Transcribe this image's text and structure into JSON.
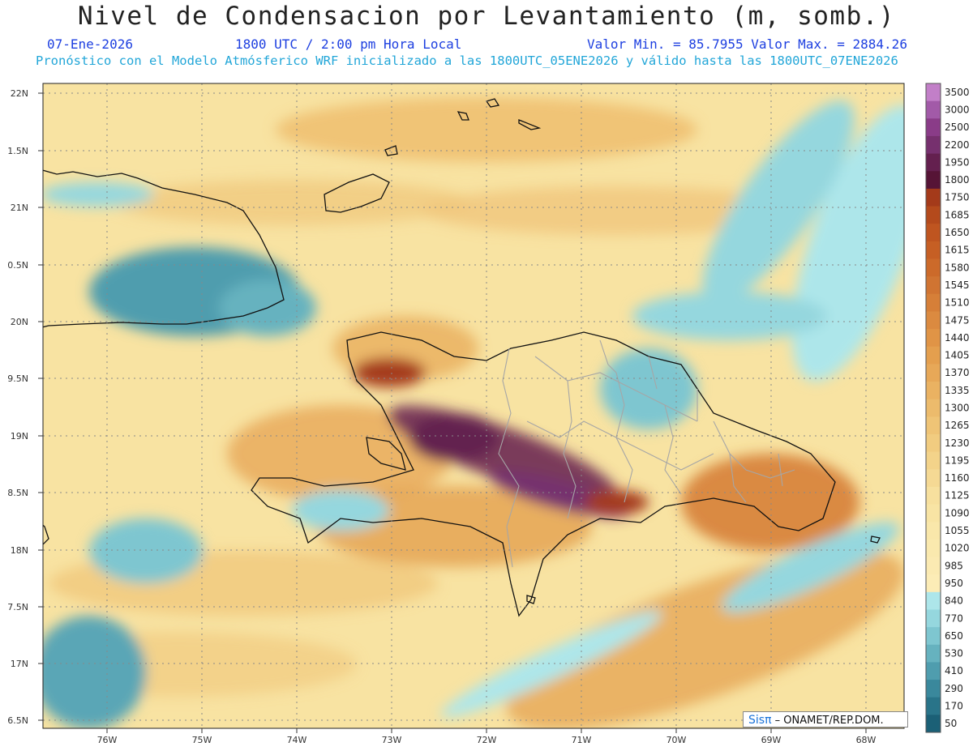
{
  "header": {
    "title": "Nivel de Condensacion por Levantamiento (m, somb.)",
    "date": "07-Ene-2026",
    "time": "1800 UTC / 2:00 pm Hora Local",
    "stats": "Valor Min. = 85.7955   Valor Max. = 2884.26",
    "forecast": "Pronóstico con el Modelo Atmósferico WRF inicializado a las 1800UTC_05ENE2026 y válido hasta las  1800UTC_07ENE2026"
  },
  "axes": {
    "lat_labels": [
      "22N",
      "1.5N",
      "21N",
      "0.5N",
      "20N",
      "9.5N",
      "19N",
      "8.5N",
      "18N",
      "7.5N",
      "17N",
      "6.5N"
    ],
    "lon_labels": [
      "76W",
      "75W",
      "74W",
      "73W",
      "72W",
      "71W",
      "70W",
      "69W",
      "68W"
    ]
  },
  "colorbar": {
    "levels": [
      "3500",
      "3000",
      "2500",
      "2200",
      "1950",
      "1800",
      "1750",
      "1685",
      "1650",
      "1615",
      "1580",
      "1545",
      "1510",
      "1475",
      "1440",
      "1405",
      "1370",
      "1335",
      "1300",
      "1265",
      "1230",
      "1195",
      "1160",
      "1125",
      "1090",
      "1055",
      "1020",
      "985",
      "950",
      "840",
      "770",
      "650",
      "530",
      "410",
      "290",
      "170",
      "50"
    ],
    "colors": [
      "#c27fc8",
      "#a25aa8",
      "#8a3c88",
      "#76306e",
      "#64204f",
      "#561436",
      "#a43a1a",
      "#b44a1c",
      "#bf5520",
      "#c65f24",
      "#cc6a2a",
      "#d07432",
      "#d67f38",
      "#db8a40",
      "#e09446",
      "#e49f4e",
      "#e7a858",
      "#eab262",
      "#ecbb6c",
      "#efc476",
      "#f1cc80",
      "#f3d38a",
      "#f5d994",
      "#f7e09e",
      "#f8e4a4",
      "#f9e7aa",
      "#fae9ae",
      "#fbeab2",
      "#fcecb6",
      "#ade6ea",
      "#95d7de",
      "#7ec6d0",
      "#66b2bf",
      "#4f9dae",
      "#3a889c",
      "#297489",
      "#1b6076"
    ]
  },
  "credit": {
    "brand": "Sisπ",
    "org": " – ONAMET/REP.DOM."
  }
}
